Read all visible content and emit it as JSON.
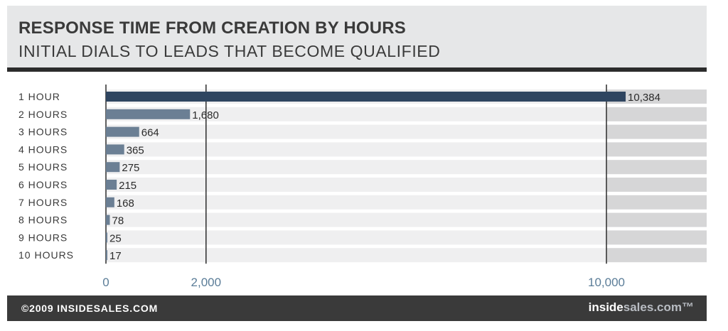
{
  "header": {
    "title": "RESPONSE TIME FROM CREATION BY HOURS",
    "subtitle": "INITIAL DIALS TO LEADS THAT BECOME QUALIFIED"
  },
  "footer": {
    "copyright": "©2009 INSIDESALES.COM",
    "brand_part1": "inside",
    "brand_part2": "sales",
    "brand_part3": ".com™"
  },
  "colors": {
    "first_bar": "#2f4560",
    "other_bars": "#6b7f94",
    "row_band": "#efeff0",
    "row_band_right": "#d6d6d7",
    "axis_label": "#5b7d98"
  },
  "chart_data": {
    "type": "bar",
    "orientation": "horizontal",
    "title": "RESPONSE TIME FROM CREATION BY HOURS",
    "subtitle": "INITIAL DIALS TO LEADS THAT BECOME QUALIFIED",
    "categories": [
      "1 HOUR",
      "2 HOURS",
      "3 HOURS",
      "4 HOURS",
      "5 HOURS",
      "6 HOURS",
      "7 HOURS",
      "8 HOURS",
      "9 HOURS",
      "10 HOURS"
    ],
    "values": [
      10384,
      1680,
      664,
      365,
      275,
      215,
      168,
      78,
      25,
      17
    ],
    "value_labels": [
      "10,384",
      "1,680",
      "664",
      "365",
      "275",
      "215",
      "168",
      "78",
      "25",
      "17"
    ],
    "x_ticks": [
      0,
      2000,
      10000
    ],
    "x_tick_labels": [
      "0",
      "2,000",
      "10,000"
    ],
    "xlim": [
      0,
      12000
    ],
    "grid": true
  }
}
